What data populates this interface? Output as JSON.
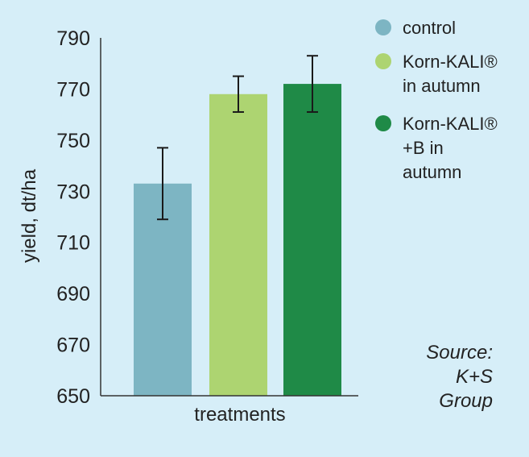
{
  "chart_data": {
    "type": "bar",
    "categories": [
      "control",
      "Korn-KALI® in autumn",
      "Korn-KALI® +B in autumn"
    ],
    "values": [
      733,
      768,
      772
    ],
    "error_bars": [
      [
        719,
        747
      ],
      [
        761,
        775
      ],
      [
        761,
        783
      ]
    ],
    "colors": [
      "#7db5c3",
      "#add471",
      "#1f8a47"
    ],
    "xlabel": "treatments",
    "ylabel": "yield, dt/ha",
    "ylim": [
      650,
      790
    ],
    "yticks": [
      "790",
      "770",
      "750",
      "730",
      "710",
      "690",
      "670",
      "650"
    ],
    "grid": false,
    "legend": {
      "position": "right",
      "entries": [
        {
          "lines": [
            "control"
          ],
          "color": "#7db5c3"
        },
        {
          "lines": [
            "Korn-KALI®",
            "in autumn"
          ],
          "color": "#add471"
        },
        {
          "lines": [
            "Korn-KALI®",
            "+B in",
            "autumn"
          ],
          "color": "#1f8a47"
        }
      ]
    },
    "annotation": [
      "Source:",
      "K+S",
      "Group"
    ]
  },
  "colors": {
    "background": "#d6eef8",
    "axis": "#333333",
    "error_bar": "#1a1a1a"
  }
}
